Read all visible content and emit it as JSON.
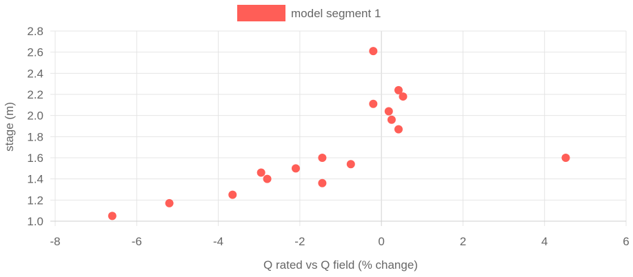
{
  "chart_data": {
    "type": "scatter",
    "xlabel": "Q rated vs Q field (% change)",
    "ylabel": "stage (m)",
    "xlim": [
      -8,
      6
    ],
    "ylim": [
      1.0,
      2.8
    ],
    "x_ticks": [
      "-8",
      "-6",
      "-4",
      "-2",
      "0",
      "2",
      "4",
      "6"
    ],
    "y_ticks": [
      "1.0",
      "1.2",
      "1.4",
      "1.6",
      "1.8",
      "2.0",
      "2.2",
      "2.4",
      "2.6",
      "2.8"
    ],
    "grid": true,
    "legend_position": "top",
    "series": [
      {
        "name": "model segment 1",
        "color": "#ff5e57",
        "points": [
          {
            "x": -6.6,
            "y": 1.05
          },
          {
            "x": -5.2,
            "y": 1.17
          },
          {
            "x": -3.65,
            "y": 1.25
          },
          {
            "x": -2.95,
            "y": 1.46
          },
          {
            "x": -2.8,
            "y": 1.4
          },
          {
            "x": -2.1,
            "y": 1.5
          },
          {
            "x": -1.45,
            "y": 1.6
          },
          {
            "x": -1.45,
            "y": 1.36
          },
          {
            "x": -0.75,
            "y": 1.54
          },
          {
            "x": -0.2,
            "y": 2.61
          },
          {
            "x": -0.2,
            "y": 2.11
          },
          {
            "x": 0.18,
            "y": 2.04
          },
          {
            "x": 0.25,
            "y": 1.96
          },
          {
            "x": 0.42,
            "y": 2.24
          },
          {
            "x": 0.42,
            "y": 1.87
          },
          {
            "x": 0.53,
            "y": 2.18
          },
          {
            "x": 4.52,
            "y": 1.6
          }
        ]
      }
    ]
  }
}
